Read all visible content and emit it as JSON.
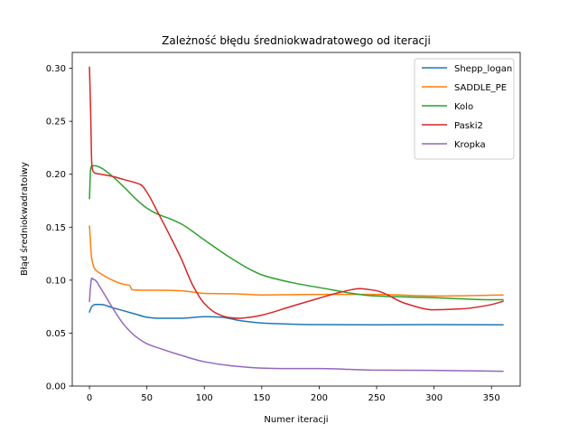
{
  "chart_data": {
    "type": "line",
    "title": "Zależność błędu średniokwadratowego od iteracji",
    "xlabel": "Numer iteracji",
    "ylabel": "Błąd średniokwadratoiwy",
    "xlim": [
      -15,
      375
    ],
    "ylim": [
      0.0,
      0.315
    ],
    "xticks": [
      0,
      50,
      100,
      150,
      200,
      250,
      300,
      350
    ],
    "yticks": [
      0.0,
      0.05,
      0.1,
      0.15,
      0.2,
      0.25,
      0.3
    ],
    "ytick_labels": [
      "0.00",
      "0.05",
      "0.10",
      "0.15",
      "0.20",
      "0.25",
      "0.30"
    ],
    "grid": false,
    "legend_position": "top-right",
    "series": [
      {
        "name": "Shepp_logan",
        "color": "#1f77b4",
        "x": [
          0,
          2,
          5,
          10,
          20,
          30,
          40,
          50,
          60,
          80,
          100,
          115,
          130,
          150,
          175,
          200,
          250,
          300,
          360
        ],
        "y": [
          0.07,
          0.075,
          0.077,
          0.077,
          0.074,
          0.071,
          0.068,
          0.065,
          0.064,
          0.064,
          0.0655,
          0.065,
          0.062,
          0.0595,
          0.0585,
          0.058,
          0.0578,
          0.058,
          0.0578
        ]
      },
      {
        "name": "SADDLE_PE",
        "color": "#ff7f0e",
        "x": [
          0,
          2,
          5,
          10,
          20,
          30,
          35,
          37,
          45,
          60,
          80,
          100,
          130,
          150,
          200,
          250,
          300,
          360
        ],
        "y": [
          0.151,
          0.12,
          0.11,
          0.106,
          0.1,
          0.096,
          0.095,
          0.091,
          0.0905,
          0.0905,
          0.09,
          0.0875,
          0.087,
          0.086,
          0.0865,
          0.0865,
          0.085,
          0.086
        ]
      },
      {
        "name": "Kolo",
        "color": "#2ca02c",
        "x": [
          0,
          1,
          2,
          5,
          10,
          20,
          30,
          40,
          50,
          60,
          70,
          80,
          100,
          120,
          140,
          150,
          175,
          200,
          250,
          300,
          350,
          360
        ],
        "y": [
          0.177,
          0.205,
          0.208,
          0.208,
          0.206,
          0.198,
          0.188,
          0.177,
          0.168,
          0.162,
          0.158,
          0.153,
          0.138,
          0.123,
          0.11,
          0.105,
          0.098,
          0.093,
          0.085,
          0.0835,
          0.0815,
          0.0815
        ]
      },
      {
        "name": "Paski2",
        "color": "#d62728",
        "x": [
          0,
          1,
          2,
          3,
          5,
          10,
          20,
          30,
          40,
          45,
          50,
          60,
          70,
          80,
          90,
          100,
          110,
          120,
          130,
          140,
          150,
          175,
          200,
          220,
          235,
          250,
          275,
          300,
          325,
          350,
          360
        ],
        "y": [
          0.301,
          0.26,
          0.21,
          0.203,
          0.201,
          0.2,
          0.198,
          0.195,
          0.192,
          0.19,
          0.183,
          0.163,
          0.142,
          0.12,
          0.095,
          0.078,
          0.069,
          0.065,
          0.064,
          0.065,
          0.067,
          0.075,
          0.083,
          0.089,
          0.092,
          0.09,
          0.078,
          0.072,
          0.073,
          0.077,
          0.08
        ]
      },
      {
        "name": "Kropka",
        "color": "#9467bd",
        "x": [
          0,
          1,
          2,
          3,
          5,
          10,
          20,
          30,
          40,
          50,
          60,
          80,
          100,
          125,
          150,
          175,
          200,
          250,
          300,
          360
        ],
        "y": [
          0.08,
          0.095,
          0.102,
          0.101,
          0.1,
          0.092,
          0.074,
          0.058,
          0.047,
          0.04,
          0.036,
          0.029,
          0.023,
          0.019,
          0.017,
          0.0165,
          0.0165,
          0.015,
          0.0148,
          0.014
        ]
      }
    ]
  }
}
